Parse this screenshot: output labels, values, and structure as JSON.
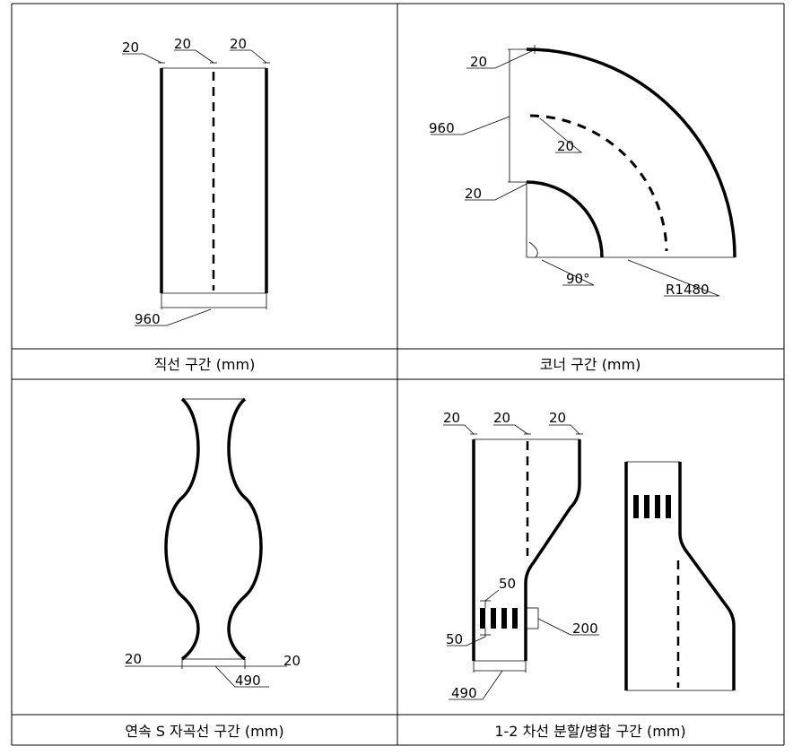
{
  "panels": {
    "straight": {
      "caption": "직선 구간 (mm)",
      "dim_left": "20",
      "dim_center": "20",
      "dim_right": "20",
      "dim_width": "960"
    },
    "corner": {
      "caption": "코너 구간 (mm)",
      "dim_outer_line": "20",
      "dim_width": "960",
      "dim_center_line": "20",
      "dim_inner_line": "20",
      "dim_angle": "90°",
      "dim_radius": "R1480"
    },
    "s_curve": {
      "caption": "연속 S 자곡선 구간 (mm)",
      "dim_left": "20",
      "dim_right": "20",
      "dim_width": "490"
    },
    "split_merge": {
      "caption": "1-2 차선 분할/병합 구간 (mm)",
      "dim_left": "20",
      "dim_center": "20",
      "dim_right": "20",
      "dim_stripe_gap": "50",
      "dim_stripe_width": "50",
      "dim_marker_length": "200",
      "dim_width": "490"
    }
  }
}
